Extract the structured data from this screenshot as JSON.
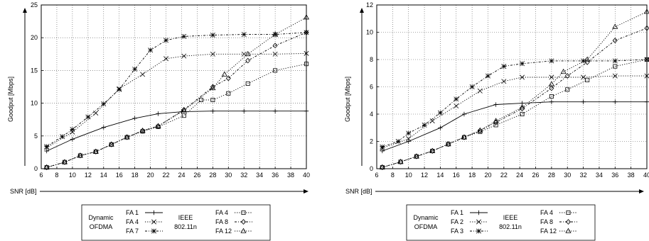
{
  "chart_data": [
    {
      "type": "line",
      "xlabel": "SNR [dB]",
      "ylabel": "Goodput [Mbps]",
      "xlim": [
        6,
        40
      ],
      "ylim": [
        0,
        25
      ],
      "xticks": [
        6,
        8,
        10,
        12,
        14,
        16,
        18,
        20,
        22,
        24,
        26,
        28,
        30,
        32,
        34,
        36,
        38,
        40
      ],
      "yticks": [
        0,
        5,
        10,
        15,
        20,
        25
      ],
      "grid": true,
      "legend": {
        "placement": "bottom",
        "group1_title": [
          "Dynamic",
          "OFDMA"
        ],
        "group2_title": [
          "IEEE",
          "802.11n"
        ]
      },
      "series": [
        {
          "name": "FA 1",
          "group": "dyn",
          "marker": "plus",
          "dash": "solid",
          "x": [
            6.7,
            10,
            14,
            18,
            21,
            24,
            28,
            32,
            36,
            40
          ],
          "y": [
            2.7,
            4.5,
            6.3,
            7.7,
            8.4,
            8.7,
            8.8,
            8.8,
            8.8,
            8.8
          ]
        },
        {
          "name": "FA 4",
          "group": "dyn",
          "marker": "x",
          "dash": "dotted",
          "x": [
            6.7,
            10,
            13,
            16,
            19,
            22,
            24.3,
            28,
            32,
            36,
            40
          ],
          "y": [
            3.2,
            5.6,
            8.5,
            12.2,
            14.4,
            16.8,
            17.2,
            17.5,
            17.5,
            17.5,
            17.6
          ]
        },
        {
          "name": "FA 7",
          "group": "dyn",
          "marker": "star",
          "dash": "dashdot",
          "x": [
            6.7,
            8.7,
            10,
            12,
            14,
            16,
            18,
            20,
            22,
            24.3,
            28,
            32,
            36,
            40
          ],
          "y": [
            3.4,
            4.9,
            6.0,
            7.9,
            9.9,
            12.1,
            15.2,
            18.1,
            19.6,
            20.2,
            20.4,
            20.5,
            20.5,
            20.8
          ]
        },
        {
          "name": "FA 4",
          "group": "ieee",
          "marker": "square",
          "dash": "dotted",
          "x": [
            6.7,
            9,
            11,
            13,
            15,
            17,
            19,
            21,
            24.3,
            26.5,
            28,
            30,
            32.5,
            36,
            40
          ],
          "y": [
            0.2,
            1.0,
            2.0,
            2.6,
            3.7,
            4.8,
            5.7,
            6.4,
            8.1,
            10.5,
            10.5,
            11.5,
            13.0,
            15.0,
            16.0
          ]
        },
        {
          "name": "FA 8",
          "group": "ieee",
          "marker": "diamond",
          "dash": "dashdot",
          "x": [
            6.7,
            9,
            11,
            13,
            15,
            17,
            19,
            21,
            24.3,
            28,
            30,
            32.5,
            36,
            40
          ],
          "y": [
            0.2,
            1.0,
            2.0,
            2.6,
            3.7,
            4.8,
            5.8,
            6.5,
            9.0,
            12.5,
            13.8,
            16.5,
            18.8,
            20.8
          ]
        },
        {
          "name": "FA 12",
          "group": "ieee",
          "marker": "triangle",
          "dash": "dotted",
          "x": [
            6.7,
            9,
            11,
            13,
            15,
            17,
            19,
            21,
            24.3,
            28,
            29.5,
            32.5,
            36,
            40
          ],
          "y": [
            0.2,
            1.0,
            2.0,
            2.6,
            3.7,
            4.8,
            5.8,
            6.5,
            8.9,
            12.3,
            14.4,
            17.5,
            20.5,
            23.1
          ]
        }
      ]
    },
    {
      "type": "line",
      "xlabel": "SNR [dB]",
      "ylabel": "Goodput [Mbps]",
      "xlim": [
        6,
        40
      ],
      "ylim": [
        0,
        12
      ],
      "xticks": [
        6,
        8,
        10,
        12,
        14,
        16,
        18,
        20,
        22,
        24,
        26,
        28,
        30,
        32,
        34,
        36,
        38,
        40
      ],
      "yticks": [
        0,
        2,
        4,
        6,
        8,
        10,
        12
      ],
      "grid": true,
      "legend": {
        "placement": "bottom",
        "group1_title": [
          "Dynamic",
          "OFDMA"
        ],
        "group2_title": [
          "IEEE",
          "802.11n"
        ]
      },
      "series": [
        {
          "name": "FA 1",
          "group": "dyn",
          "marker": "plus",
          "dash": "solid",
          "x": [
            6.7,
            10,
            14,
            17,
            21,
            24.3,
            28,
            32,
            36,
            40
          ],
          "y": [
            1.3,
            2.0,
            3.0,
            4.0,
            4.7,
            4.8,
            4.9,
            4.9,
            4.9,
            4.9
          ]
        },
        {
          "name": "FA 2",
          "group": "dyn",
          "marker": "x",
          "dash": "dotted",
          "x": [
            6.7,
            10,
            13,
            16,
            19,
            22,
            24.3,
            28,
            32,
            36,
            40
          ],
          "y": [
            1.5,
            2.2,
            3.5,
            4.6,
            5.7,
            6.4,
            6.7,
            6.7,
            6.7,
            6.8,
            6.8
          ]
        },
        {
          "name": "FA 3",
          "group": "dyn",
          "marker": "star",
          "dash": "dashdot",
          "x": [
            6.7,
            8.7,
            10,
            12,
            14,
            16,
            18,
            20,
            22,
            24.3,
            28,
            32,
            36,
            40
          ],
          "y": [
            1.6,
            2.0,
            2.6,
            3.2,
            4.1,
            5.1,
            6.0,
            6.8,
            7.5,
            7.7,
            7.9,
            7.9,
            7.9,
            8.0
          ]
        },
        {
          "name": "FA 4",
          "group": "ieee",
          "marker": "square",
          "dash": "dotted",
          "x": [
            6.7,
            9,
            11,
            13,
            15,
            17,
            19,
            21,
            24.3,
            28,
            30,
            32.5,
            36,
            40
          ],
          "y": [
            0.1,
            0.5,
            0.9,
            1.3,
            1.8,
            2.3,
            2.7,
            3.2,
            4.0,
            5.3,
            5.8,
            6.5,
            7.5,
            8.0
          ]
        },
        {
          "name": "FA 8",
          "group": "ieee",
          "marker": "diamond",
          "dash": "dashdot",
          "x": [
            6.7,
            9,
            11,
            13,
            15,
            17,
            19,
            21,
            24.3,
            28,
            30,
            32.5,
            36,
            40
          ],
          "y": [
            0.1,
            0.5,
            0.9,
            1.3,
            1.8,
            2.3,
            2.8,
            3.4,
            4.4,
            5.9,
            6.8,
            7.8,
            9.4,
            10.3
          ]
        },
        {
          "name": "FA 12",
          "group": "ieee",
          "marker": "triangle",
          "dash": "dotted",
          "x": [
            6.7,
            9,
            11,
            13,
            15,
            17,
            19,
            21,
            24.3,
            28,
            29.5,
            32.5,
            36,
            40
          ],
          "y": [
            0.1,
            0.5,
            0.9,
            1.3,
            1.8,
            2.3,
            2.8,
            3.5,
            4.5,
            6.2,
            7.1,
            8.0,
            10.4,
            11.5
          ]
        }
      ]
    }
  ]
}
